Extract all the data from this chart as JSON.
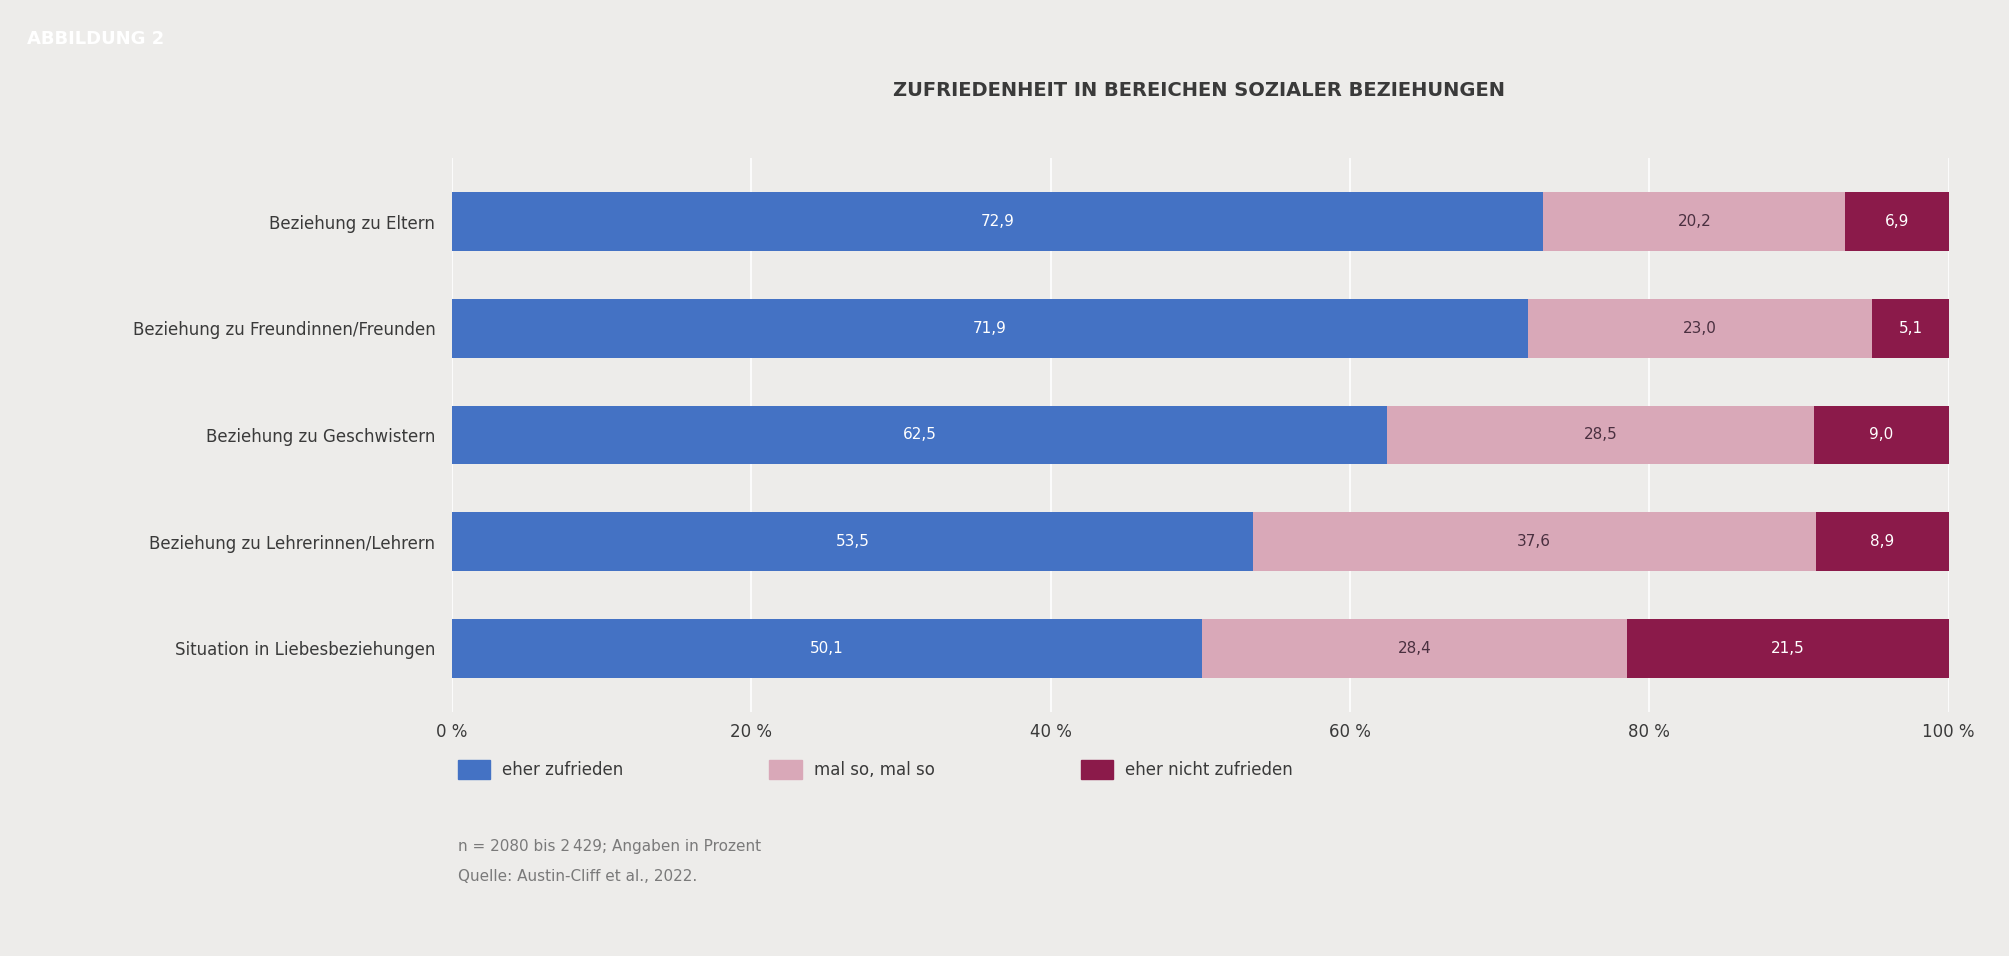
{
  "title": "ZUFRIEDENHEIT IN BEREICHEN SOZIALER BEZIEHUNGEN",
  "header_label": "ABBILDUNG 2",
  "categories": [
    "Beziehung zu Eltern",
    "Beziehung zu Freundinnen/Freunden",
    "Beziehung zu Geschwistern",
    "Beziehung zu Lehrerinnen/Lehrern",
    "Situation in Liebesbeziehungen"
  ],
  "series": {
    "eher zufrieden": [
      72.9,
      71.9,
      62.5,
      53.5,
      50.1
    ],
    "mal so, mal so": [
      20.2,
      23.0,
      28.5,
      37.6,
      28.4
    ],
    "eher nicht zufrieden": [
      6.9,
      5.1,
      9.0,
      8.9,
      21.5
    ]
  },
  "colors": {
    "eher zufrieden": "#4472C4",
    "mal so, mal so": "#D9A8B8",
    "eher nicht zufrieden": "#8B1A4A"
  },
  "background_color": "#EDECEA",
  "xtick_labels": [
    "0 %",
    "20 %",
    "40 %",
    "60 %",
    "80 %",
    "100 %"
  ],
  "xtick_values": [
    0,
    20,
    40,
    60,
    80,
    100
  ],
  "footnote_line1": "n = 2080 bis 2 429; Angaben in Prozent",
  "footnote_line2": "Quelle: Austin-Cliff et al., 2022.",
  "legend_labels": [
    "eher zufrieden",
    "mal so, mal so",
    "eher nicht zufrieden"
  ],
  "bar_height": 0.55,
  "title_fontsize": 14,
  "label_fontsize": 12,
  "bar_label_fontsize": 11,
  "legend_fontsize": 12,
  "footnote_fontsize": 11,
  "header_fontsize": 13,
  "text_color": "#3a3a3a",
  "footnote_color": "#7a7a7a"
}
